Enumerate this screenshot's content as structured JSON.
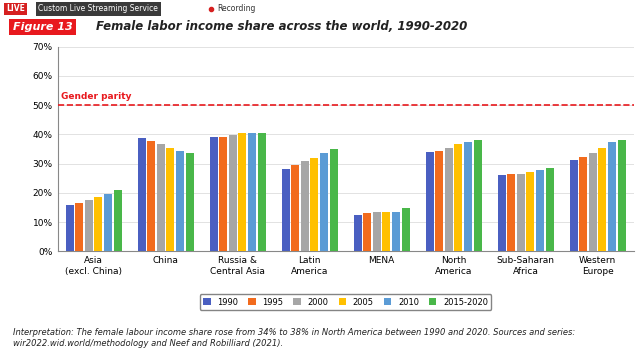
{
  "screen": {
    "badge": "LIVE",
    "service": "Custom Live Streaming Service",
    "status": "Recording"
  },
  "chart_data": {
    "type": "bar",
    "figure_label": "Figure 13",
    "title": "Female labor income share across the world, 1990-2020",
    "categories": [
      "Asia\n(excl. China)",
      "China",
      "Russia &\nCentral Asia",
      "Latin\nAmerica",
      "MENA",
      "North\nAmerica",
      "Sub-Saharan\nAfrica",
      "Western\nEurope"
    ],
    "series": [
      {
        "name": "1990",
        "color": "#4a5fc1",
        "values": [
          16,
          38.8,
          39,
          28,
          12.5,
          34,
          26,
          31.2
        ]
      },
      {
        "name": "1995",
        "color": "#f26b1d",
        "values": [
          16.5,
          37.8,
          39.2,
          29.5,
          13,
          34.3,
          26.3,
          32.2
        ]
      },
      {
        "name": "2000",
        "color": "#a6a6a6",
        "values": [
          17.5,
          36.6,
          39.8,
          31,
          13.5,
          35.3,
          26.5,
          33.5
        ]
      },
      {
        "name": "2005",
        "color": "#ffc000",
        "values": [
          18.5,
          35.2,
          40.5,
          32,
          13.3,
          36.6,
          27.2,
          35.5
        ]
      },
      {
        "name": "2010",
        "color": "#5b9bd5",
        "values": [
          19.5,
          34.2,
          40.6,
          33.5,
          13.6,
          37.5,
          27.8,
          37.3
        ]
      },
      {
        "name": "2015-2020",
        "color": "#49b749",
        "values": [
          21,
          33.6,
          40.5,
          35,
          14.7,
          38,
          28.4,
          38
        ]
      }
    ],
    "ylim": [
      0,
      70
    ],
    "yticks": [
      {
        "value": 0,
        "label": "0%"
      },
      {
        "value": 10,
        "label": "10%"
      },
      {
        "value": 20,
        "label": "20%"
      },
      {
        "value": 30,
        "label": "30%"
      },
      {
        "value": 40,
        "label": "40%"
      },
      {
        "value": 50,
        "label": "50%"
      },
      {
        "value": 60,
        "label": "60%"
      },
      {
        "value": 70,
        "label": "70%"
      }
    ],
    "grid": true,
    "legend": "lower center",
    "reference_line": {
      "label": "Gender parity",
      "value": 50,
      "color": "#e8191e"
    },
    "note": "Interpretation: The female labour income share rose from 34% to 38% in North America between 1990 and 2020. Sources and series: wir2022.wid.world/methodology and Neef and Robilliard (2021)."
  }
}
